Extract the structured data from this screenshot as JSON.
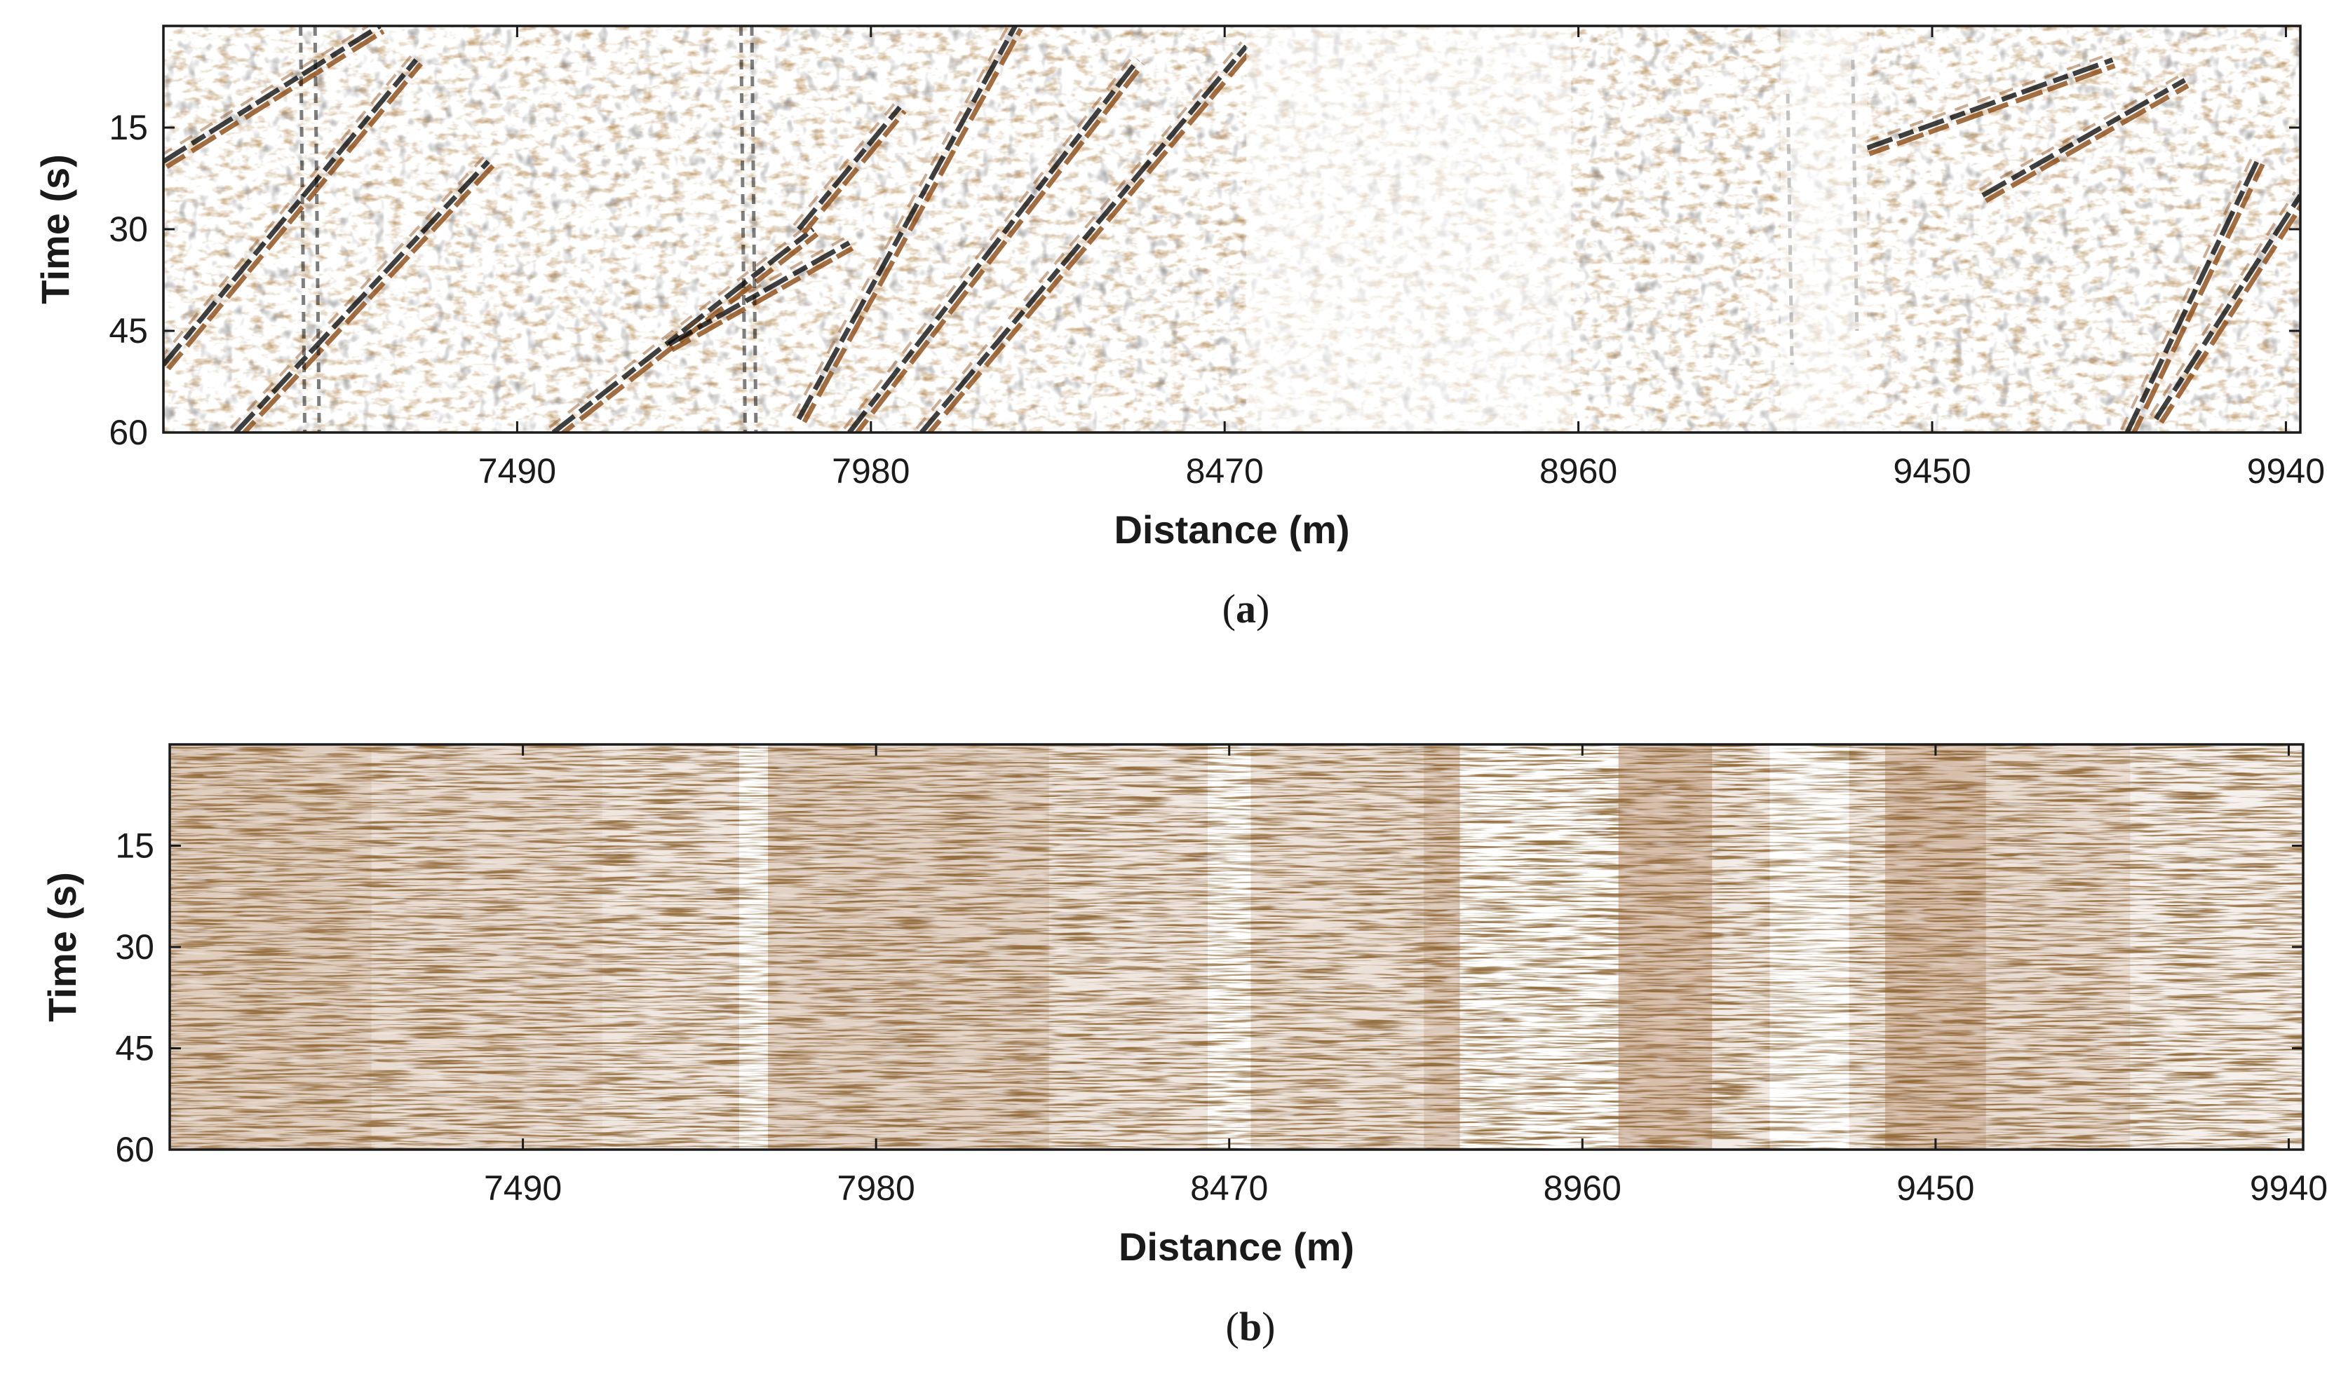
{
  "chart_data": [
    {
      "type": "heatmap",
      "panel_caption": "a",
      "xlabel": "Distance (m)",
      "ylabel": "Time (s)",
      "xlim": [
        7000,
        9960
      ],
      "ylim": [
        0,
        60
      ],
      "x_ticks": [
        7490,
        7980,
        8470,
        8960,
        9450,
        9940
      ],
      "y_ticks": [
        15,
        30,
        45,
        60
      ],
      "y_reversed": true,
      "colormap": [
        "#000000",
        "#ffffff",
        "#8b4a14"
      ],
      "features": {
        "dipping_events": [
          {
            "x_start": 7000,
            "t_start": 20,
            "x_end": 7300,
            "t_end": 0
          },
          {
            "x_start": 7000,
            "t_start": 50,
            "x_end": 7350,
            "t_end": 5
          },
          {
            "x_start": 7100,
            "t_start": 60,
            "x_end": 7450,
            "t_end": 20
          },
          {
            "x_start": 7540,
            "t_start": 60,
            "x_end": 7900,
            "t_end": 30
          },
          {
            "x_start": 7700,
            "t_start": 47,
            "x_end": 7950,
            "t_end": 32
          },
          {
            "x_start": 7880,
            "t_start": 58,
            "x_end": 8180,
            "t_end": 0
          },
          {
            "x_start": 7950,
            "t_start": 60,
            "x_end": 8350,
            "t_end": 5
          },
          {
            "x_start": 8050,
            "t_start": 60,
            "x_end": 8500,
            "t_end": 3
          },
          {
            "x_start": 7880,
            "t_start": 30,
            "x_end": 8020,
            "t_end": 12
          },
          {
            "x_start": 9360,
            "t_start": 18,
            "x_end": 9700,
            "t_end": 5
          },
          {
            "x_start": 9520,
            "t_start": 25,
            "x_end": 9800,
            "t_end": 8
          },
          {
            "x_start": 9720,
            "t_start": 60,
            "x_end": 9900,
            "t_end": 20
          },
          {
            "x_start": 9760,
            "t_start": 58,
            "x_end": 9960,
            "t_end": 25
          }
        ],
        "vertical_events": [
          {
            "x": 7190,
            "t_start": 0,
            "t_end": 60
          },
          {
            "x": 7210,
            "t_start": 0,
            "t_end": 60
          },
          {
            "x": 7800,
            "t_start": 0,
            "t_end": 60
          },
          {
            "x": 7815,
            "t_start": 0,
            "t_end": 60
          },
          {
            "x": 9250,
            "t_start": 10,
            "t_end": 50
          },
          {
            "x": 9340,
            "t_start": 5,
            "t_end": 45
          }
        ],
        "quiet_zones": [
          {
            "x_start": 8500,
            "x_end": 8950
          },
          {
            "x_start": 9240,
            "x_end": 9360
          }
        ]
      }
    },
    {
      "type": "heatmap",
      "panel_caption": "b",
      "xlabel": "Distance (m)",
      "ylabel": "Time (s)",
      "xlim": [
        7000,
        9960
      ],
      "ylim": [
        0,
        60
      ],
      "x_ticks": [
        7490,
        7980,
        8470,
        8960,
        9450,
        9940
      ],
      "y_ticks": [
        15,
        30,
        45,
        60
      ],
      "y_reversed": true,
      "colormap": [
        "#000000",
        "#ffffff",
        "#8b4a14"
      ],
      "features": {
        "band_intensity": [
          {
            "x_start": 7000,
            "x_end": 7280,
            "level": 0.8
          },
          {
            "x_start": 7280,
            "x_end": 7600,
            "level": 0.65
          },
          {
            "x_start": 7600,
            "x_end": 7790,
            "level": 0.55
          },
          {
            "x_start": 7790,
            "x_end": 7830,
            "level": 0.1
          },
          {
            "x_start": 7830,
            "x_end": 8220,
            "level": 0.75
          },
          {
            "x_start": 8220,
            "x_end": 8440,
            "level": 0.55
          },
          {
            "x_start": 8440,
            "x_end": 8500,
            "level": 0.2
          },
          {
            "x_start": 8500,
            "x_end": 8740,
            "level": 0.6
          },
          {
            "x_start": 8740,
            "x_end": 8790,
            "level": 0.85
          },
          {
            "x_start": 8790,
            "x_end": 9010,
            "level": 0.3
          },
          {
            "x_start": 9010,
            "x_end": 9140,
            "level": 0.95
          },
          {
            "x_start": 9140,
            "x_end": 9220,
            "level": 0.5
          },
          {
            "x_start": 9220,
            "x_end": 9330,
            "level": 0.08
          },
          {
            "x_start": 9330,
            "x_end": 9380,
            "level": 0.5
          },
          {
            "x_start": 9380,
            "x_end": 9520,
            "level": 0.95
          },
          {
            "x_start": 9520,
            "x_end": 9720,
            "level": 0.65
          },
          {
            "x_start": 9720,
            "x_end": 9960,
            "level": 0.45
          }
        ]
      }
    }
  ]
}
